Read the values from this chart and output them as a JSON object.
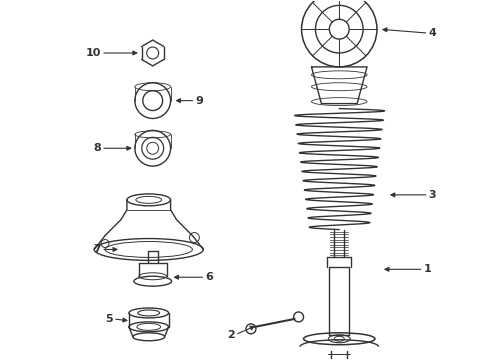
{
  "bg_color": "#ffffff",
  "line_color": "#333333",
  "line_width": 1.0,
  "fig_width": 4.89,
  "fig_height": 3.6,
  "dpi": 100
}
